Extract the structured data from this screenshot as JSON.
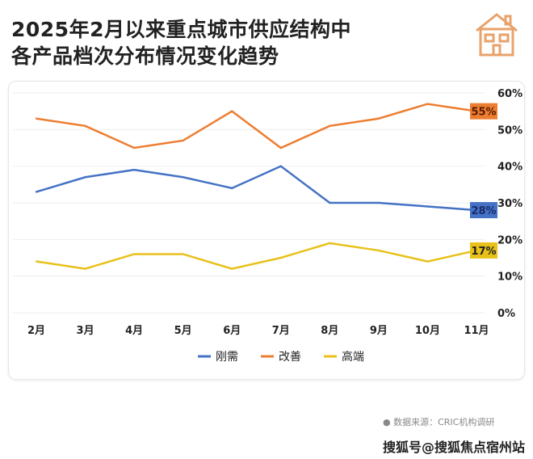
{
  "title_lines": [
    "2025年2月以来重点城市供应结构中",
    "各产品档次分布情况变化趋势"
  ],
  "source": "数据来源：CRIC机构调研",
  "watermark": "搜狐号@搜狐焦点宿州站",
  "chart_data": {
    "type": "line",
    "categories": [
      "2月",
      "3月",
      "4月",
      "5月",
      "6月",
      "7月",
      "8月",
      "9月",
      "10月",
      "11月"
    ],
    "ylim": [
      0,
      60
    ],
    "yticks": [
      "0%",
      "10%",
      "20%",
      "30%",
      "40%",
      "50%",
      "60%"
    ],
    "ytick_values": [
      0,
      10,
      20,
      30,
      40,
      50,
      60
    ],
    "grid": true,
    "legend_position": "bottom",
    "series": [
      {
        "name": "刚需",
        "color": "#4472C4",
        "values": [
          33,
          37,
          39,
          37,
          34,
          40,
          30,
          30,
          29,
          28
        ],
        "end_label": "28%"
      },
      {
        "name": "改善",
        "color": "#ED7D31",
        "values": [
          53,
          51,
          45,
          47,
          55,
          45,
          51,
          53,
          57,
          55
        ],
        "end_label": "55%"
      },
      {
        "name": "高端",
        "color": "#E8C11A",
        "values": [
          14,
          12,
          16,
          16,
          12,
          15,
          19,
          17,
          14,
          17
        ],
        "end_label": "17%"
      }
    ]
  }
}
